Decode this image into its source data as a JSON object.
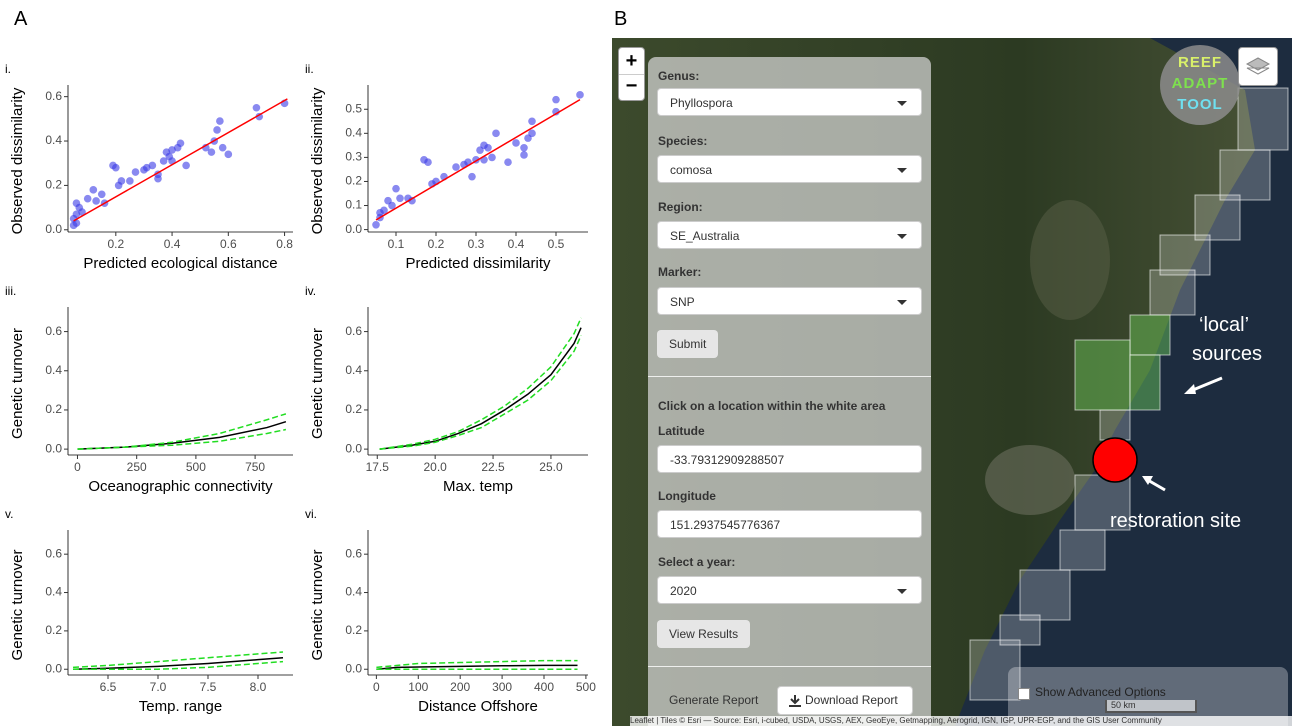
{
  "panel_labels": [
    "A",
    "B"
  ],
  "chart_data": [
    {
      "type": "scatter",
      "label": "i.",
      "xlabel": "Predicted ecological distance",
      "ylabel": "Observed dissimilarity",
      "color": "#3a3ae6",
      "x": [
        0.05,
        0.05,
        0.06,
        0.06,
        0.07,
        0.06,
        0.08,
        0.1,
        0.12,
        0.13,
        0.15,
        0.16,
        0.19,
        0.2,
        0.21,
        0.22,
        0.25,
        0.27,
        0.3,
        0.31,
        0.33,
        0.35,
        0.35,
        0.37,
        0.38,
        0.39,
        0.4,
        0.4,
        0.42,
        0.43,
        0.45,
        0.52,
        0.54,
        0.55,
        0.56,
        0.57,
        0.58,
        0.6,
        0.7,
        0.71,
        0.8
      ],
      "values": [
        0.02,
        0.05,
        0.03,
        0.07,
        0.1,
        0.12,
        0.08,
        0.14,
        0.18,
        0.13,
        0.16,
        0.12,
        0.29,
        0.28,
        0.2,
        0.22,
        0.22,
        0.26,
        0.27,
        0.28,
        0.29,
        0.25,
        0.23,
        0.31,
        0.35,
        0.33,
        0.36,
        0.31,
        0.37,
        0.39,
        0.29,
        0.37,
        0.35,
        0.4,
        0.45,
        0.49,
        0.37,
        0.34,
        0.55,
        0.51,
        0.57
      ],
      "fit": {
        "color": "#ff0000",
        "x": [
          0.05,
          0.81
        ],
        "values": [
          0.04,
          0.59
        ]
      },
      "xlim": [
        0.03,
        0.83
      ],
      "xticks": [
        0.2,
        0.4,
        0.6,
        0.8
      ],
      "ylim": [
        -0.01,
        0.63
      ],
      "yticks": [
        {
          "value": 0,
          "label": "0.0"
        },
        0.2,
        0.4,
        0.6
      ]
    },
    {
      "type": "scatter",
      "label": "ii.",
      "xlabel": "Predicted dissimilarity",
      "ylabel": "Observed dissimilarity",
      "color": "#3a3ae6",
      "x": [
        0.05,
        0.06,
        0.06,
        0.07,
        0.08,
        0.09,
        0.1,
        0.11,
        0.13,
        0.14,
        0.17,
        0.18,
        0.19,
        0.2,
        0.22,
        0.25,
        0.27,
        0.28,
        0.3,
        0.29,
        0.31,
        0.32,
        0.33,
        0.32,
        0.34,
        0.35,
        0.38,
        0.4,
        0.42,
        0.43,
        0.44,
        0.44,
        0.42,
        0.5,
        0.5,
        0.56
      ],
      "values": [
        0.02,
        0.05,
        0.07,
        0.08,
        0.12,
        0.1,
        0.17,
        0.13,
        0.13,
        0.12,
        0.29,
        0.28,
        0.19,
        0.2,
        0.22,
        0.26,
        0.27,
        0.28,
        0.29,
        0.22,
        0.33,
        0.35,
        0.34,
        0.29,
        0.3,
        0.4,
        0.28,
        0.36,
        0.34,
        0.38,
        0.45,
        0.4,
        0.31,
        0.54,
        0.49,
        0.56
      ],
      "fit": {
        "color": "#ff0000",
        "x": [
          0.05,
          0.56
        ],
        "values": [
          0.04,
          0.54
        ]
      },
      "xlim": [
        0.03,
        0.58
      ],
      "xticks": [
        0.1,
        0.2,
        0.3,
        0.4,
        0.5
      ],
      "ylim": [
        -0.01,
        0.58
      ],
      "yticks": [
        {
          "value": 0,
          "label": "0.0"
        },
        0.1,
        0.2,
        0.3,
        0.4,
        0.5
      ]
    },
    {
      "type": "line",
      "label": "iii.",
      "xlabel": "Oceanographic connectivity",
      "ylabel": "Genetic turnover",
      "x": [
        0,
        200,
        400,
        600,
        800,
        880
      ],
      "series": [
        {
          "color": "#000000",
          "values": [
            0,
            0.01,
            0.03,
            0.06,
            0.11,
            0.14
          ]
        },
        {
          "color": "#22dd22",
          "dashed": true,
          "values": [
            0,
            0.01,
            0.02,
            0.04,
            0.08,
            0.1
          ]
        },
        {
          "color": "#22dd22",
          "dashed": true,
          "values": [
            0,
            0.01,
            0.035,
            0.08,
            0.15,
            0.18
          ]
        }
      ],
      "xlim": [
        -40,
        910
      ],
      "xticks": [
        0,
        250,
        500,
        750
      ],
      "ylim": [
        -0.03,
        0.7
      ],
      "yticks": [
        {
          "value": 0,
          "label": "0.0"
        },
        0.2,
        0.4,
        0.6
      ]
    },
    {
      "type": "line",
      "label": "iv.",
      "xlabel": "Max. temp",
      "ylabel": "Genetic turnover",
      "x": [
        17.6,
        19,
        20,
        21,
        22,
        23,
        24,
        25,
        26,
        26.3
      ],
      "series": [
        {
          "color": "#000000",
          "values": [
            0,
            0.02,
            0.04,
            0.08,
            0.13,
            0.2,
            0.28,
            0.38,
            0.54,
            0.62
          ]
        },
        {
          "color": "#22dd22",
          "dashed": true,
          "values": [
            0,
            0.015,
            0.035,
            0.07,
            0.11,
            0.18,
            0.25,
            0.35,
            0.5,
            0.58
          ]
        },
        {
          "color": "#22dd22",
          "dashed": true,
          "values": [
            0,
            0.025,
            0.05,
            0.09,
            0.15,
            0.22,
            0.31,
            0.42,
            0.59,
            0.67
          ]
        }
      ],
      "xlim": [
        17.1,
        26.6
      ],
      "xticks": [
        17.5,
        {
          "value": 20,
          "label": "20.0"
        },
        22.5,
        {
          "value": 25,
          "label": "25.0"
        }
      ],
      "ylim": [
        -0.03,
        0.7
      ],
      "yticks": [
        {
          "value": 0,
          "label": "0.0"
        },
        0.2,
        0.4,
        0.6
      ]
    },
    {
      "type": "line",
      "label": "v.",
      "xlabel": "Temp. range",
      "ylabel": "Genetic turnover",
      "x": [
        6.15,
        6.5,
        7,
        7.5,
        8,
        8.25
      ],
      "series": [
        {
          "color": "#000000",
          "values": [
            0,
            0.005,
            0.015,
            0.03,
            0.05,
            0.06
          ]
        },
        {
          "color": "#22dd22",
          "dashed": true,
          "values": [
            0,
            0,
            0,
            0.01,
            0.03,
            0.04
          ]
        },
        {
          "color": "#22dd22",
          "dashed": true,
          "values": [
            0.01,
            0.02,
            0.04,
            0.06,
            0.08,
            0.09
          ]
        }
      ],
      "xlim": [
        6.1,
        8.35
      ],
      "xticks": [
        6.5,
        {
          "value": 7,
          "label": "7.0"
        },
        7.5,
        {
          "value": 8,
          "label": "8.0"
        }
      ],
      "ylim": [
        -0.03,
        0.7
      ],
      "yticks": [
        {
          "value": 0,
          "label": "0.0"
        },
        0.2,
        0.4,
        0.6
      ]
    },
    {
      "type": "line",
      "label": "vi.",
      "xlabel": "Distance Offshore",
      "ylabel": "Genetic turnover",
      "x": [
        0,
        50,
        100,
        200,
        300,
        400,
        480
      ],
      "series": [
        {
          "color": "#000000",
          "values": [
            0,
            0.01,
            0.012,
            0.015,
            0.018,
            0.02,
            0.02
          ]
        },
        {
          "color": "#22dd22",
          "dashed": true,
          "values": [
            0,
            0,
            0,
            0,
            0,
            0,
            0
          ]
        },
        {
          "color": "#22dd22",
          "dashed": true,
          "values": [
            0.01,
            0.02,
            0.03,
            0.035,
            0.04,
            0.045,
            0.045
          ]
        }
      ],
      "xlim": [
        -20,
        505
      ],
      "xticks": [
        0,
        100,
        200,
        300,
        400,
        500
      ],
      "ylim": [
        -0.03,
        0.7
      ],
      "yticks": [
        {
          "value": 0,
          "label": "0.0"
        },
        0.2,
        0.4,
        0.6
      ]
    }
  ],
  "map_ui": {
    "zoom_in": "+",
    "zoom_out": "−",
    "logo": [
      "REEF",
      "ADAPT",
      "TOOL"
    ],
    "fields": [
      {
        "label": "Genus:",
        "value": "Phyllospora"
      },
      {
        "label": "Species:",
        "value": "comosa"
      },
      {
        "label": "Region:",
        "value": "SE_Australia"
      },
      {
        "label": "Marker:",
        "value": "SNP"
      }
    ],
    "submit": "Submit",
    "instruction": "Click on a location within the white area",
    "latitude_label": "Latitude",
    "latitude": "-33.79312909288507",
    "longitude_label": "Longitude",
    "longitude": "151.2937545776367",
    "year_label": "Select a year:",
    "year": "2020",
    "view_results": "View Results",
    "generate_report": "Generate Report",
    "download_report": "Download Report",
    "annotations": {
      "local_1": "‘local’",
      "local_2": "sources",
      "site": "restoration site"
    },
    "advanced": "Show Advanced Options",
    "scale": "50 km",
    "attribution": "Leaflet | Tiles © Esri — Source: Esri, i-cubed, USDA, USGS, AEX, GeoEye, Getmapping, Aerogrid, IGN, IGP, UPR-EGP, and the GIS User Community"
  }
}
